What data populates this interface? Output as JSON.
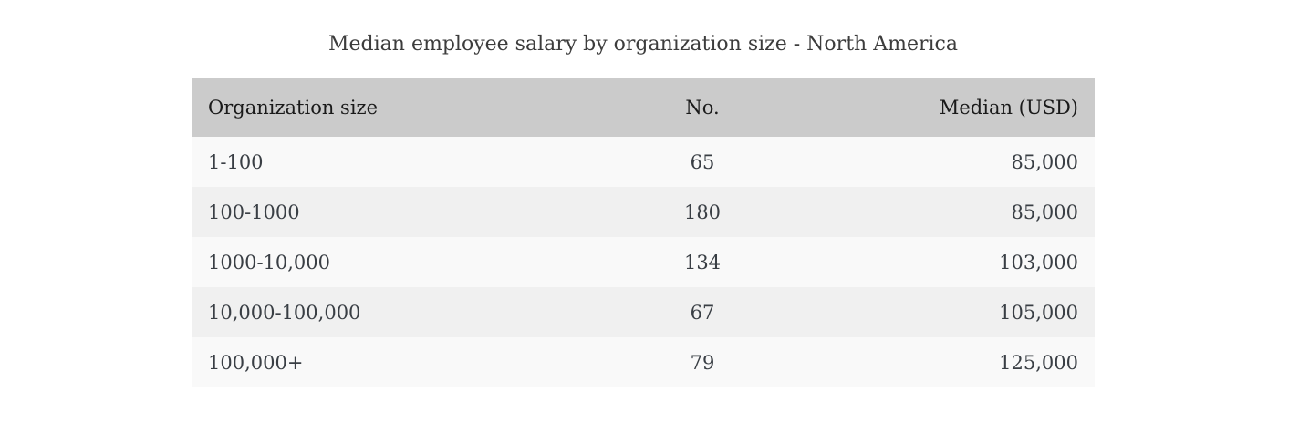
{
  "page": {
    "title": "Median employee salary by organization size - North America"
  },
  "table": {
    "columns": [
      {
        "label": "Organization size",
        "align": "left"
      },
      {
        "label": "No.",
        "align": "center"
      },
      {
        "label": "Median (USD)",
        "align": "right"
      }
    ],
    "rows": [
      {
        "org_size": "1-100",
        "no": "65",
        "median": "85,000"
      },
      {
        "org_size": "100-1000",
        "no": "180",
        "median": "85,000"
      },
      {
        "org_size": "1000-10,000",
        "no": "134",
        "median": "103,000"
      },
      {
        "org_size": "10,000-100,000",
        "no": "67",
        "median": "105,000"
      },
      {
        "org_size": "100,000+",
        "no": "79",
        "median": "125,000"
      }
    ],
    "colors": {
      "header_bg": "#cbcbcb",
      "row_odd_bg": "#f9f9f9",
      "row_even_bg": "#f0f0f0",
      "header_text": "#1a1a1a",
      "body_text": "#393e44",
      "title_text": "#3c3c3c",
      "page_bg": "#ffffff"
    }
  },
  "chart_data": {
    "type": "table",
    "title": "Median employee salary by organization size - North America",
    "columns": [
      "Organization size",
      "No.",
      "Median (USD)"
    ],
    "rows": [
      [
        "1-100",
        65,
        85000
      ],
      [
        "100-1000",
        180,
        85000
      ],
      [
        "1000-10,000",
        134,
        103000
      ],
      [
        "10,000-100,000",
        67,
        105000
      ],
      [
        "100,000+",
        79,
        125000
      ]
    ],
    "notes": "Median values displayed with thousands separators; No. column center-aligned; Median column right-aligned"
  }
}
